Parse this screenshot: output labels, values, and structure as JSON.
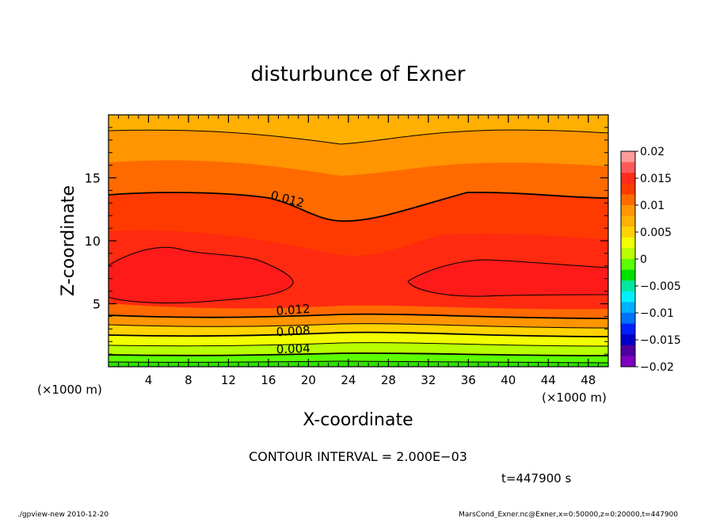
{
  "chart_data": {
    "type": "contour",
    "title": "disturbunce of Exner",
    "xlabel": "X-coordinate",
    "ylabel": "Z-coordinate",
    "x_unit_left": "(×1000 m)",
    "x_unit_right": "(×1000 m)",
    "xlim": [
      0,
      50
    ],
    "ylim": [
      0,
      20
    ],
    "x_ticks": [
      4,
      8,
      12,
      16,
      20,
      24,
      28,
      32,
      36,
      40,
      44,
      48
    ],
    "y_ticks": [
      5,
      10,
      15
    ],
    "contour_labels": [
      {
        "text": "0.012",
        "x": 17.8,
        "z": 13.0,
        "rotate": 15
      },
      {
        "text": "0.012",
        "x": 18.5,
        "z": 4.2,
        "rotate": -4
      },
      {
        "text": "0.008",
        "x": 18.5,
        "z": 2.5,
        "rotate": -3
      },
      {
        "text": "0.004",
        "x": 18.5,
        "z": 1.1,
        "rotate": -2
      }
    ],
    "colorbar": {
      "levels": [
        0.02,
        0.015,
        0.01,
        0.005,
        0,
        -0.005,
        -0.01,
        -0.015,
        -0.02
      ],
      "labels": [
        "0.02",
        "0.015",
        "0.01",
        "0.005",
        "0",
        "−0.005",
        "−0.01",
        "−0.015",
        "−0.02"
      ],
      "colors": [
        "#ff9a9a",
        "#ff5a5a",
        "#ff2d1a",
        "#ff3a00",
        "#ff6a00",
        "#ff9500",
        "#ffb000",
        "#ffd200",
        "#f2ff00",
        "#b8ff00",
        "#5aff00",
        "#00e000",
        "#00e8a0",
        "#00f0ff",
        "#00b0ff",
        "#0070ff",
        "#0020ff",
        "#0000c8",
        "#5000a0",
        "#8000c0"
      ]
    },
    "contour_interval_text": "CONTOUR INTERVAL = 2.000E−03",
    "time_text": "t=447900 s"
  },
  "footer": {
    "left": "./gpview-new   2010-12-20",
    "right": "MarsCond_Exner.nc@Exner,x=0:50000,z=0:20000,t=447900"
  }
}
